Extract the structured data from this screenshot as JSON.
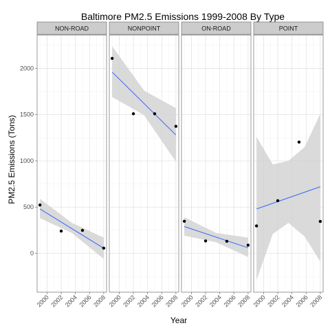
{
  "colors": {
    "panel_background": "#ffffff",
    "panel_border": "#7f7f7f",
    "strip_fill": "#cccccc",
    "grid_major": "#e3e3e3",
    "grid_minor": "#f2f2f2",
    "point": "#000000",
    "trend_line": "#3366ff",
    "confidence_band": "#d3d3d3"
  },
  "chart_data": {
    "type": "scatter",
    "facet_layout": "1x4",
    "title": "Baltimore PM2.5 Emissions 1999-2008 By Type",
    "xlabel": "Year",
    "ylabel": "PM2.5 Emissions (Tons)",
    "xlim": [
      1998.6,
      2008.4
    ],
    "ylim": [
      -420,
      2360
    ],
    "x_ticks": [
      "2000",
      "2002",
      "2004",
      "2006",
      "2008"
    ],
    "y_ticks": [
      "0",
      "500",
      "1000",
      "1500",
      "2000"
    ],
    "grid": true,
    "smoothing": "linear fit with 95% confidence band",
    "panels": [
      {
        "name": "NON-ROAD",
        "points": [
          [
            1999,
            522.94
          ],
          [
            2002,
            240.85
          ],
          [
            2005,
            248.93
          ],
          [
            2008,
            55.82
          ]
        ],
        "fit": [
          [
            1999,
            480
          ],
          [
            2008,
            55
          ]
        ],
        "band": [
          [
            1999,
            380,
            590
          ],
          [
            2003.5,
            220,
            330
          ],
          [
            2008,
            -60,
            170
          ]
        ]
      },
      {
        "name": "NONPOINT",
        "points": [
          [
            1999,
            2107.63
          ],
          [
            2002,
            1509.5
          ],
          [
            2005,
            1509.5
          ],
          [
            2008,
            1373.21
          ]
        ],
        "fit": [
          [
            1999,
            1960
          ],
          [
            2008,
            1280
          ]
        ],
        "band": [
          [
            1999,
            1690,
            2240
          ],
          [
            2003.5,
            1495,
            1760
          ],
          [
            2008,
            990,
            1570
          ]
        ]
      },
      {
        "name": "ON-ROAD",
        "points": [
          [
            1999,
            346.82
          ],
          [
            2002,
            134.31
          ],
          [
            2005,
            130.43
          ],
          [
            2008,
            88.28
          ]
        ],
        "fit": [
          [
            1999,
            290
          ],
          [
            2008,
            60
          ]
        ],
        "band": [
          [
            1999,
            190,
            390
          ],
          [
            2003.5,
            120,
            220
          ],
          [
            2008,
            -40,
            170
          ]
        ]
      },
      {
        "name": "POINT",
        "points": [
          [
            1999,
            296.8
          ],
          [
            2002,
            569.26
          ],
          [
            2005,
            1202.49
          ],
          [
            2008,
            344.98
          ]
        ],
        "fit": [
          [
            1999,
            480
          ],
          [
            2008,
            720
          ]
        ],
        "band": [
          [
            1999,
            -290,
            1260
          ],
          [
            2001.3,
            210,
            960
          ],
          [
            2003.5,
            330,
            1000
          ],
          [
            2005.8,
            180,
            1150
          ],
          [
            2008,
            -90,
            1510
          ]
        ]
      }
    ]
  }
}
